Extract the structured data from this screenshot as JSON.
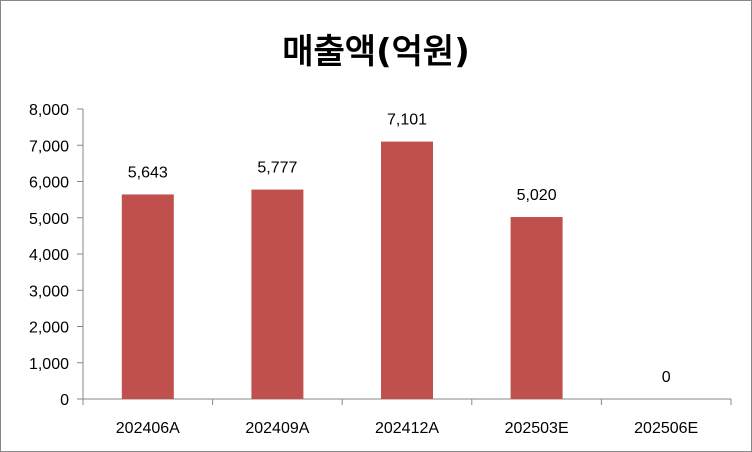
{
  "chart_data": {
    "type": "bar",
    "title": "매출액(억원)",
    "xlabel": "",
    "ylabel": "",
    "categories": [
      "202406A",
      "202409A",
      "202412A",
      "202503E",
      "202506E"
    ],
    "values": [
      5643,
      5777,
      7101,
      5020,
      0
    ],
    "data_labels": [
      "5,643",
      "5,777",
      "7,101",
      "5,020",
      "0"
    ],
    "ylim": [
      0,
      8000
    ],
    "yticks": [
      0,
      1000,
      2000,
      3000,
      4000,
      5000,
      6000,
      7000,
      8000
    ],
    "ytick_labels": [
      "0",
      "1,000",
      "2,000",
      "3,000",
      "4,000",
      "5,000",
      "6,000",
      "7,000",
      "8,000"
    ],
    "bar_color": "#C0504D",
    "grid": false,
    "legend": "none"
  }
}
